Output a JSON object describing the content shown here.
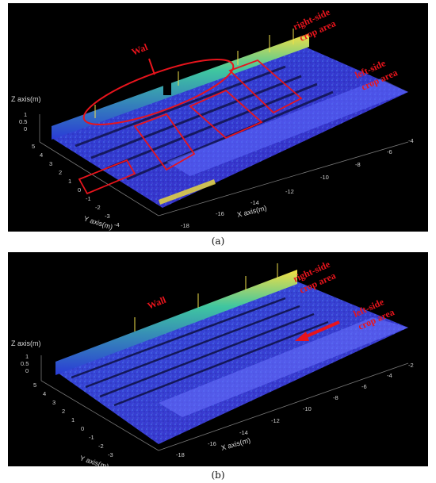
{
  "figure": {
    "panels": [
      {
        "id": "a",
        "caption": "(a)",
        "annotations": {
          "wall": "Wal",
          "right_area_line1": "right-side",
          "right_area_line2": "crop area",
          "left_area_line1": "left-side",
          "left_area_line2": "crop area"
        },
        "axes": {
          "z_label": "Z axis(m)",
          "y_label": "Y axis(m)",
          "x_label": "X axis(m)",
          "z_ticks": [
            "1",
            "0.5",
            "0"
          ],
          "y_ticks": [
            "5",
            "4",
            "3",
            "2",
            "1",
            "0",
            "-1",
            "-2",
            "-3",
            "-4"
          ],
          "x_ticks": [
            "-18",
            "-16",
            "-14",
            "-12",
            "-10",
            "-8",
            "-6",
            "-4"
          ]
        },
        "colors": {
          "annotation": "#e8141c",
          "point_low": "#2a3bd6",
          "point_high": "#f5e042"
        }
      },
      {
        "id": "b",
        "caption": "(b)",
        "annotations": {
          "wall": "Wall",
          "right_area_line1": "right-side",
          "right_area_line2": "crop area",
          "left_area_line1": "left-side",
          "left_area_line2": "crop area"
        },
        "axes": {
          "z_label": "Z axis(m)",
          "y_label": "Y axis(m)",
          "x_label": "X axis(m)",
          "z_ticks": [
            "1",
            "0.5",
            "0"
          ],
          "y_ticks": [
            "5",
            "4",
            "3",
            "2",
            "1",
            "0",
            "-1",
            "-2",
            "-3"
          ],
          "x_ticks": [
            "-18",
            "-16",
            "-14",
            "-12",
            "-10",
            "-8",
            "-6",
            "-4",
            "-2"
          ]
        },
        "colors": {
          "annotation": "#e8141c",
          "point_low": "#2a3bd6",
          "point_high": "#f5e042"
        }
      }
    ]
  }
}
